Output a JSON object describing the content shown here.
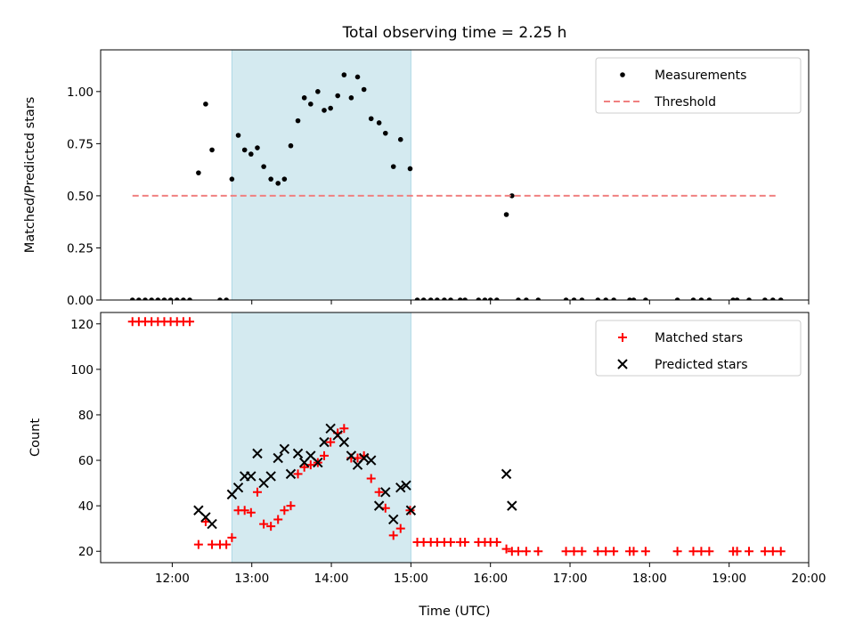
{
  "chart_data": [
    {
      "type": "scatter",
      "title": "Total observing time = 2.25 h",
      "xlabel": "",
      "ylabel": "Matched/Predicted stars",
      "ylim": [
        0,
        1.2
      ],
      "yticks": [
        "0.00",
        "0.25",
        "0.50",
        "0.75",
        "1.00"
      ],
      "ytick_values": [
        0,
        0.25,
        0.5,
        0.75,
        1.0
      ],
      "xlim_hours": [
        11.1,
        20.0
      ],
      "grid": false,
      "legend_position": "top-right",
      "shaded_interval_hours": [
        12.75,
        15.0
      ],
      "shade_color": "#d4eaf0",
      "series": [
        {
          "name": "Measurements",
          "color": "#000000",
          "marker": "dot",
          "points": [
            [
              11.5,
              0
            ],
            [
              11.58,
              0
            ],
            [
              11.66,
              0
            ],
            [
              11.74,
              0
            ],
            [
              11.82,
              0
            ],
            [
              11.9,
              0
            ],
            [
              11.98,
              0
            ],
            [
              12.06,
              0
            ],
            [
              12.14,
              0
            ],
            [
              12.22,
              0
            ],
            [
              12.33,
              0.61
            ],
            [
              12.42,
              0.94
            ],
            [
              12.5,
              0.72
            ],
            [
              12.6,
              0
            ],
            [
              12.68,
              0
            ],
            [
              12.75,
              0.58
            ],
            [
              12.83,
              0.79
            ],
            [
              12.91,
              0.72
            ],
            [
              12.99,
              0.7
            ],
            [
              13.07,
              0.73
            ],
            [
              13.15,
              0.64
            ],
            [
              13.24,
              0.58
            ],
            [
              13.33,
              0.56
            ],
            [
              13.41,
              0.58
            ],
            [
              13.49,
              0.74
            ],
            [
              13.58,
              0.86
            ],
            [
              13.66,
              0.97
            ],
            [
              13.74,
              0.94
            ],
            [
              13.83,
              1.0
            ],
            [
              13.91,
              0.91
            ],
            [
              13.99,
              0.92
            ],
            [
              14.08,
              0.98
            ],
            [
              14.16,
              1.08
            ],
            [
              14.25,
              0.97
            ],
            [
              14.33,
              1.07
            ],
            [
              14.41,
              1.01
            ],
            [
              14.5,
              0.87
            ],
            [
              14.6,
              0.85
            ],
            [
              14.68,
              0.8
            ],
            [
              14.78,
              0.64
            ],
            [
              14.87,
              0.77
            ],
            [
              14.99,
              0.63
            ],
            [
              15.08,
              0
            ],
            [
              15.16,
              0
            ],
            [
              15.25,
              0
            ],
            [
              15.33,
              0
            ],
            [
              15.42,
              0
            ],
            [
              15.5,
              0
            ],
            [
              15.62,
              0
            ],
            [
              15.68,
              0
            ],
            [
              15.85,
              0
            ],
            [
              15.93,
              0
            ],
            [
              16.0,
              0
            ],
            [
              16.08,
              0
            ],
            [
              16.2,
              0.41
            ],
            [
              16.27,
              0.5
            ],
            [
              16.35,
              0
            ],
            [
              16.45,
              0
            ],
            [
              16.6,
              0
            ],
            [
              16.95,
              0
            ],
            [
              17.05,
              0
            ],
            [
              17.15,
              0
            ],
            [
              17.35,
              0
            ],
            [
              17.45,
              0
            ],
            [
              17.55,
              0
            ],
            [
              17.75,
              0
            ],
            [
              17.8,
              0
            ],
            [
              17.95,
              0
            ],
            [
              18.35,
              0
            ],
            [
              18.55,
              0
            ],
            [
              18.65,
              0
            ],
            [
              18.75,
              0
            ],
            [
              19.05,
              0
            ],
            [
              19.1,
              0
            ],
            [
              19.25,
              0
            ],
            [
              19.45,
              0
            ],
            [
              19.55,
              0
            ],
            [
              19.65,
              0
            ]
          ]
        },
        {
          "name": "Threshold",
          "color": "#f08080",
          "style": "dashed",
          "points": [
            [
              11.5,
              0.5
            ],
            [
              19.6,
              0.5
            ]
          ]
        }
      ]
    },
    {
      "type": "scatter",
      "title": "",
      "xlabel": "Time (UTC)",
      "ylabel": "Count",
      "ylim": [
        15,
        125
      ],
      "yticks": [
        "20",
        "40",
        "60",
        "80",
        "100",
        "120"
      ],
      "ytick_values": [
        20,
        40,
        60,
        80,
        100,
        120
      ],
      "xticks": [
        "12:00",
        "13:00",
        "14:00",
        "15:00",
        "16:00",
        "17:00",
        "18:00",
        "19:00",
        "20:00"
      ],
      "xtick_values": [
        12,
        13,
        14,
        15,
        16,
        17,
        18,
        19,
        20
      ],
      "xlim_hours": [
        11.1,
        20.0
      ],
      "grid": false,
      "legend_position": "top-right",
      "shaded_interval_hours": [
        12.75,
        15.0
      ],
      "shade_color": "#d4eaf0",
      "series": [
        {
          "name": "Matched stars",
          "color": "#ff0000",
          "marker": "plus",
          "points": [
            [
              11.5,
              121
            ],
            [
              11.58,
              121
            ],
            [
              11.66,
              121
            ],
            [
              11.74,
              121
            ],
            [
              11.82,
              121
            ],
            [
              11.9,
              121
            ],
            [
              11.98,
              121
            ],
            [
              12.06,
              121
            ],
            [
              12.14,
              121
            ],
            [
              12.22,
              121
            ],
            [
              12.33,
              23
            ],
            [
              12.42,
              33
            ],
            [
              12.5,
              23
            ],
            [
              12.6,
              23
            ],
            [
              12.68,
              23
            ],
            [
              12.75,
              26
            ],
            [
              12.83,
              38
            ],
            [
              12.91,
              38
            ],
            [
              12.99,
              37
            ],
            [
              13.07,
              46
            ],
            [
              13.15,
              32
            ],
            [
              13.24,
              31
            ],
            [
              13.33,
              34
            ],
            [
              13.41,
              38
            ],
            [
              13.49,
              40
            ],
            [
              13.58,
              54
            ],
            [
              13.66,
              57
            ],
            [
              13.74,
              58
            ],
            [
              13.83,
              59
            ],
            [
              13.91,
              62
            ],
            [
              13.99,
              68
            ],
            [
              14.08,
              72
            ],
            [
              14.16,
              74
            ],
            [
              14.25,
              61
            ],
            [
              14.33,
              61
            ],
            [
              14.41,
              62
            ],
            [
              14.5,
              52
            ],
            [
              14.6,
              46
            ],
            [
              14.68,
              39
            ],
            [
              14.78,
              27
            ],
            [
              14.87,
              30
            ],
            [
              14.99,
              38
            ],
            [
              15.08,
              24
            ],
            [
              15.16,
              24
            ],
            [
              15.25,
              24
            ],
            [
              15.33,
              24
            ],
            [
              15.42,
              24
            ],
            [
              15.5,
              24
            ],
            [
              15.62,
              24
            ],
            [
              15.68,
              24
            ],
            [
              15.85,
              24
            ],
            [
              15.93,
              24
            ],
            [
              16.0,
              24
            ],
            [
              16.08,
              24
            ],
            [
              16.2,
              21
            ],
            [
              16.27,
              20
            ],
            [
              16.35,
              20
            ],
            [
              16.45,
              20
            ],
            [
              16.6,
              20
            ],
            [
              16.95,
              20
            ],
            [
              17.05,
              20
            ],
            [
              17.15,
              20
            ],
            [
              17.35,
              20
            ],
            [
              17.45,
              20
            ],
            [
              17.55,
              20
            ],
            [
              17.75,
              20
            ],
            [
              17.8,
              20
            ],
            [
              17.95,
              20
            ],
            [
              18.35,
              20
            ],
            [
              18.55,
              20
            ],
            [
              18.65,
              20
            ],
            [
              18.75,
              20
            ],
            [
              19.05,
              20
            ],
            [
              19.1,
              20
            ],
            [
              19.25,
              20
            ],
            [
              19.45,
              20
            ],
            [
              19.55,
              20
            ],
            [
              19.65,
              20
            ]
          ]
        },
        {
          "name": "Predicted stars",
          "color": "#000000",
          "marker": "x",
          "points": [
            [
              12.33,
              38
            ],
            [
              12.42,
              35
            ],
            [
              12.5,
              32
            ],
            [
              12.75,
              45
            ],
            [
              12.83,
              48
            ],
            [
              12.91,
              53
            ],
            [
              12.99,
              53
            ],
            [
              13.07,
              63
            ],
            [
              13.15,
              50
            ],
            [
              13.24,
              53
            ],
            [
              13.33,
              61
            ],
            [
              13.41,
              65
            ],
            [
              13.49,
              54
            ],
            [
              13.58,
              63
            ],
            [
              13.66,
              59
            ],
            [
              13.74,
              62
            ],
            [
              13.83,
              59
            ],
            [
              13.91,
              68
            ],
            [
              13.99,
              74
            ],
            [
              14.08,
              71
            ],
            [
              14.16,
              68
            ],
            [
              14.25,
              62
            ],
            [
              14.33,
              58
            ],
            [
              14.41,
              61
            ],
            [
              14.5,
              60
            ],
            [
              14.6,
              40
            ],
            [
              14.68,
              46
            ],
            [
              14.78,
              34
            ],
            [
              14.87,
              48
            ],
            [
              14.94,
              49
            ],
            [
              15.0,
              38
            ],
            [
              16.2,
              54
            ],
            [
              16.27,
              40
            ]
          ]
        }
      ]
    }
  ]
}
